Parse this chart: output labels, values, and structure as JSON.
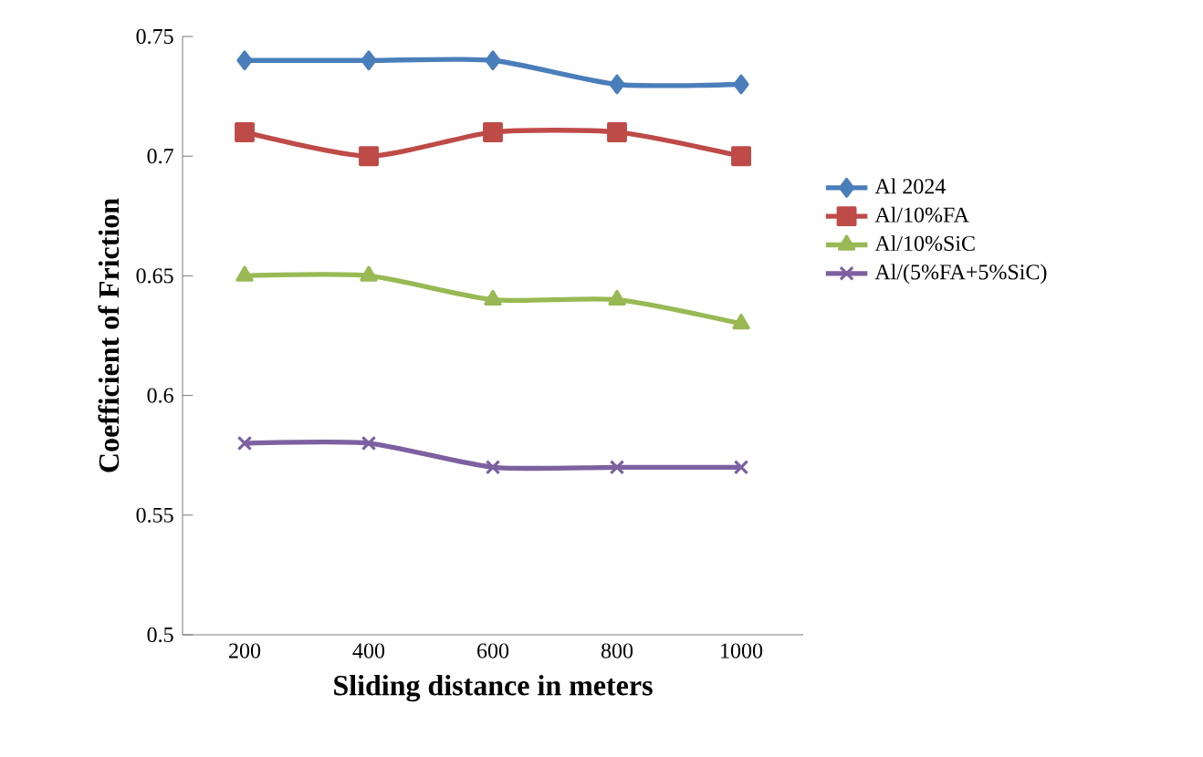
{
  "chart_data": {
    "type": "line",
    "xlabel": "Sliding distance in meters",
    "ylabel": "Coefficient of Friction",
    "categories": [
      "200",
      "400",
      "600",
      "800",
      "1000"
    ],
    "series": [
      {
        "name": "Al 2024",
        "color": "#4a7ebb",
        "marker": "diamond",
        "values": [
          0.74,
          0.74,
          0.74,
          0.73,
          0.73
        ]
      },
      {
        "name": "Al/10%FA",
        "color": "#be4b48",
        "marker": "square",
        "values": [
          0.71,
          0.7,
          0.71,
          0.71,
          0.7
        ]
      },
      {
        "name": "Al/10%SiC",
        "color": "#98b954",
        "marker": "triangle",
        "values": [
          0.65,
          0.65,
          0.64,
          0.64,
          0.63
        ]
      },
      {
        "name": "Al/(5%FA+5%SiC)",
        "color": "#7d60a0",
        "marker": "cross",
        "values": [
          0.58,
          0.58,
          0.57,
          0.57,
          0.57
        ]
      }
    ],
    "ylim": [
      0.5,
      0.75
    ],
    "yticks": [
      0.5,
      0.55,
      0.6,
      0.65,
      0.7,
      0.75
    ],
    "grid": false,
    "legend": "right",
    "line_style": "solid"
  }
}
